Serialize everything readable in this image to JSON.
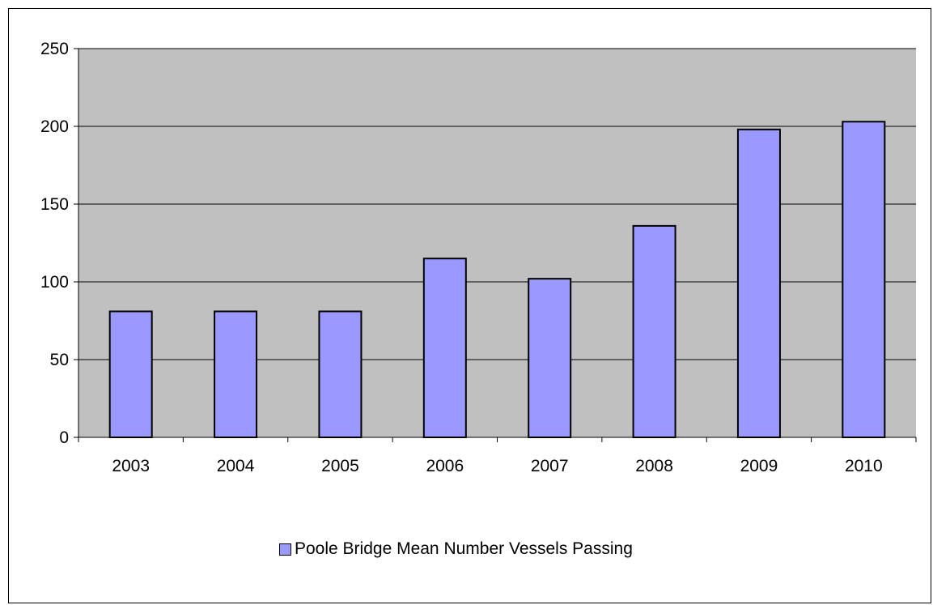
{
  "colors": {
    "plot_background": "#c0c0c0",
    "bar_fill": "#9999ff",
    "bar_stroke": "#000000",
    "grid": "#000000"
  },
  "chart_data": {
    "type": "bar",
    "categories": [
      "2003",
      "2004",
      "2005",
      "2006",
      "2007",
      "2008",
      "2009",
      "2010"
    ],
    "series": [
      {
        "name": "Poole Bridge Mean Number Vessels Passing",
        "values": [
          81,
          81,
          81,
          115,
          102,
          136,
          198,
          203
        ]
      }
    ],
    "ylim": [
      0,
      250
    ],
    "yticks": [
      0,
      50,
      100,
      150,
      200,
      250
    ],
    "grid": true,
    "legend": "bottom"
  }
}
